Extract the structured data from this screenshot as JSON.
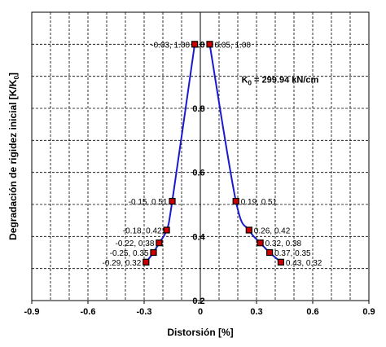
{
  "chart_data": {
    "type": "scatter",
    "xlabel": "Distorsión  [%]",
    "ylabel": "Degradación de rigidez inicial [K/K",
    "ylabel_sub": "0",
    "ylabel_close": "]",
    "xlim": [
      -0.9,
      0.9
    ],
    "ylim": [
      0.2,
      1.1
    ],
    "x_ticks": [
      -0.9,
      -0.6,
      -0.3,
      0,
      0.3,
      0.6,
      0.9
    ],
    "x_tick_labels": [
      "-0.9",
      "-0.6",
      "-0.3",
      "0",
      "0.3",
      "0.6",
      "0.9"
    ],
    "y_ticks": [
      0.2,
      0.4,
      0.6,
      0.8,
      1.0
    ],
    "y_tick_labels": [
      "0.2",
      "0.4",
      "0.6",
      "0.8",
      "1.0"
    ],
    "grid": true,
    "grid_x_step": 0.1,
    "grid_y_step": 0.1,
    "line_color": "#1a1acd",
    "marker_color": "#cc0000",
    "annotation": {
      "text_main": "K",
      "text_sub": "0",
      "text_rest": " = 299.94 kN/cm",
      "x": 0.22,
      "y": 0.88
    },
    "series": [
      {
        "points": [
          {
            "x": -0.29,
            "y": 0.32,
            "label": "-0.29, 0.32"
          },
          {
            "x": -0.25,
            "y": 0.35,
            "label": "-0.25, 0.35"
          },
          {
            "x": -0.22,
            "y": 0.38,
            "label": "-0.22, 0.38"
          },
          {
            "x": -0.18,
            "y": 0.42,
            "label": "-0.18, 0.42"
          },
          {
            "x": -0.15,
            "y": 0.51,
            "label": "-0.15, 0.51"
          },
          {
            "x": -0.03,
            "y": 1.0,
            "label": "-0.03, 1.00"
          }
        ]
      },
      {
        "points": [
          {
            "x": 0.05,
            "y": 1.0,
            "label": "0.05, 1.00"
          },
          {
            "x": 0.19,
            "y": 0.51,
            "label": "0.19, 0.51"
          },
          {
            "x": 0.26,
            "y": 0.42,
            "label": "0.26, 0.42"
          },
          {
            "x": 0.32,
            "y": 0.38,
            "label": "0.32, 0.38"
          },
          {
            "x": 0.37,
            "y": 0.35,
            "label": "0.37, 0.35"
          },
          {
            "x": 0.43,
            "y": 0.32,
            "label": "0.43, 0.32"
          }
        ]
      }
    ]
  }
}
